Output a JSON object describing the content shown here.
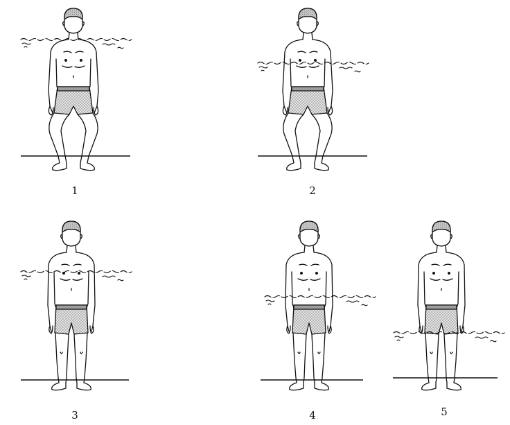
{
  "figures": [
    {
      "label": "1",
      "pose": "crouching",
      "water_level": "shoulder"
    },
    {
      "label": "2",
      "pose": "crouching",
      "water_level": "chest"
    },
    {
      "label": "3",
      "pose": "standing",
      "water_level": "chest"
    },
    {
      "label": "4",
      "pose": "standing",
      "water_level": "waist"
    },
    {
      "label": "5",
      "pose": "standing",
      "water_level": "thigh"
    }
  ],
  "colors": {
    "line": "#111111",
    "hair": "#b5b5b5",
    "trunks": "#cfcfcf",
    "background": "#ffffff"
  }
}
